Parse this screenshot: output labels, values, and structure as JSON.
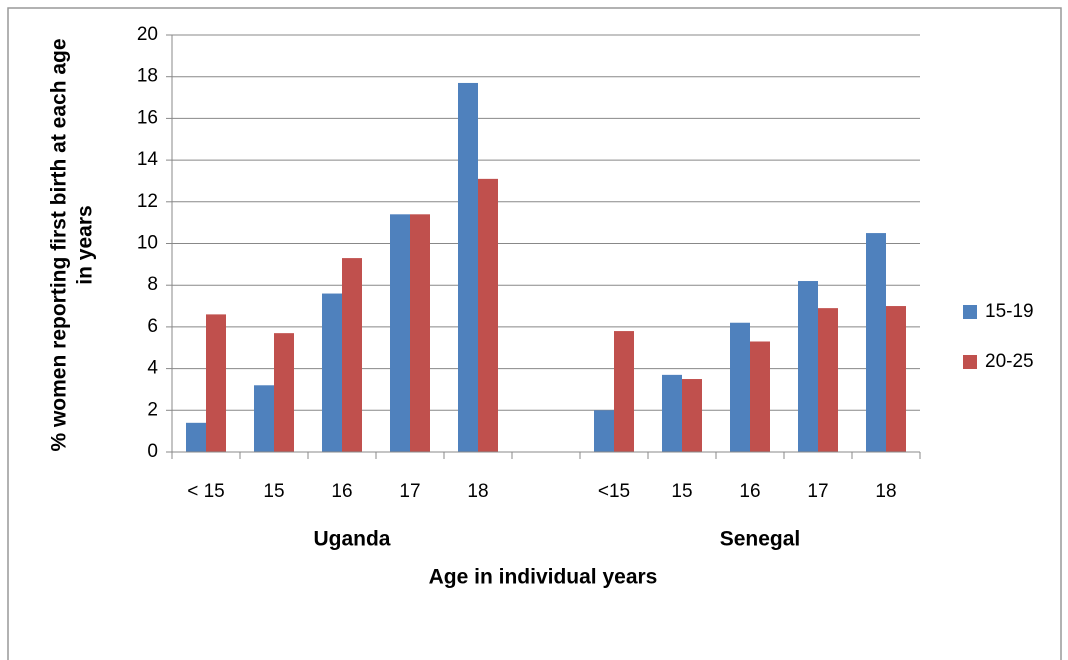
{
  "chart_data": {
    "type": "bar",
    "categories": [
      "< 15",
      "15",
      "16",
      "17",
      "18",
      null,
      "<15",
      "15",
      "16",
      "17",
      "18"
    ],
    "series": [
      {
        "name": "15-19",
        "color": "#4f81bd",
        "values": [
          1.4,
          3.2,
          7.6,
          11.4,
          17.7,
          null,
          2.0,
          3.7,
          6.2,
          8.2,
          10.5
        ]
      },
      {
        "name": "20-25",
        "color": "#c0504d",
        "values": [
          6.6,
          5.7,
          9.3,
          11.4,
          13.1,
          null,
          5.8,
          3.5,
          5.3,
          6.9,
          7.0
        ]
      }
    ],
    "annotations": [
      "Uganda",
      "Senegal"
    ],
    "x_label": "Age in individual years",
    "y_label": [
      "% women reporting first birth at each age",
      "in years"
    ],
    "ylim": [
      0,
      20
    ],
    "yticks": [
      0,
      2,
      4,
      6,
      8,
      10,
      12,
      14,
      16,
      18,
      20
    ],
    "grid": true,
    "legend": "right"
  }
}
